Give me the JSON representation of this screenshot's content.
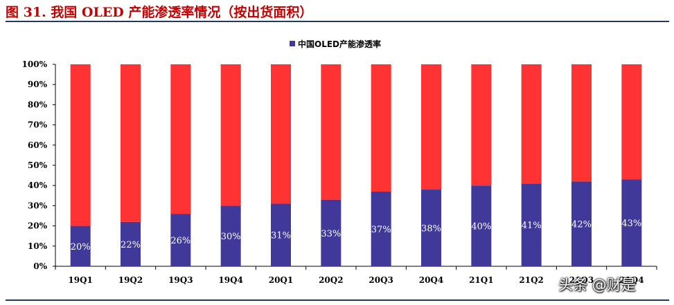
{
  "title": "图 31. 我国 OLED 产能渗透率情况（按出货面积）",
  "watermark": "头条 @财是",
  "colors": {
    "series": "#40399A",
    "remainder": "#FF3333",
    "title": "#C00000",
    "rule": "#1F3A63"
  },
  "chart_data": {
    "type": "bar",
    "stacked": true,
    "categories": [
      "19Q1",
      "19Q2",
      "19Q3",
      "19Q4",
      "20Q1",
      "20Q2",
      "20Q3",
      "20Q4",
      "21Q1",
      "21Q2",
      "21Q3",
      "21Q4"
    ],
    "series": [
      {
        "name": "中国OLED产能渗透率",
        "values": [
          20,
          22,
          26,
          30,
          31,
          33,
          37,
          38,
          40,
          41,
          42,
          43
        ],
        "color": "#40399A"
      },
      {
        "values": [
          80,
          78,
          74,
          70,
          69,
          67,
          63,
          62,
          60,
          59,
          58,
          57
        ],
        "color": "#FF3333"
      }
    ],
    "data_labels": [
      "20%",
      "22%",
      "26%",
      "30%",
      "31%",
      "33%",
      "37%",
      "38%",
      "40%",
      "41%",
      "42%",
      "43%"
    ],
    "yticks": [
      "0%",
      "10%",
      "20%",
      "30%",
      "40%",
      "50%",
      "60%",
      "70%",
      "80%",
      "90%",
      "100%"
    ],
    "ylim": [
      0,
      100
    ],
    "grid": false,
    "legend": "top-center"
  }
}
